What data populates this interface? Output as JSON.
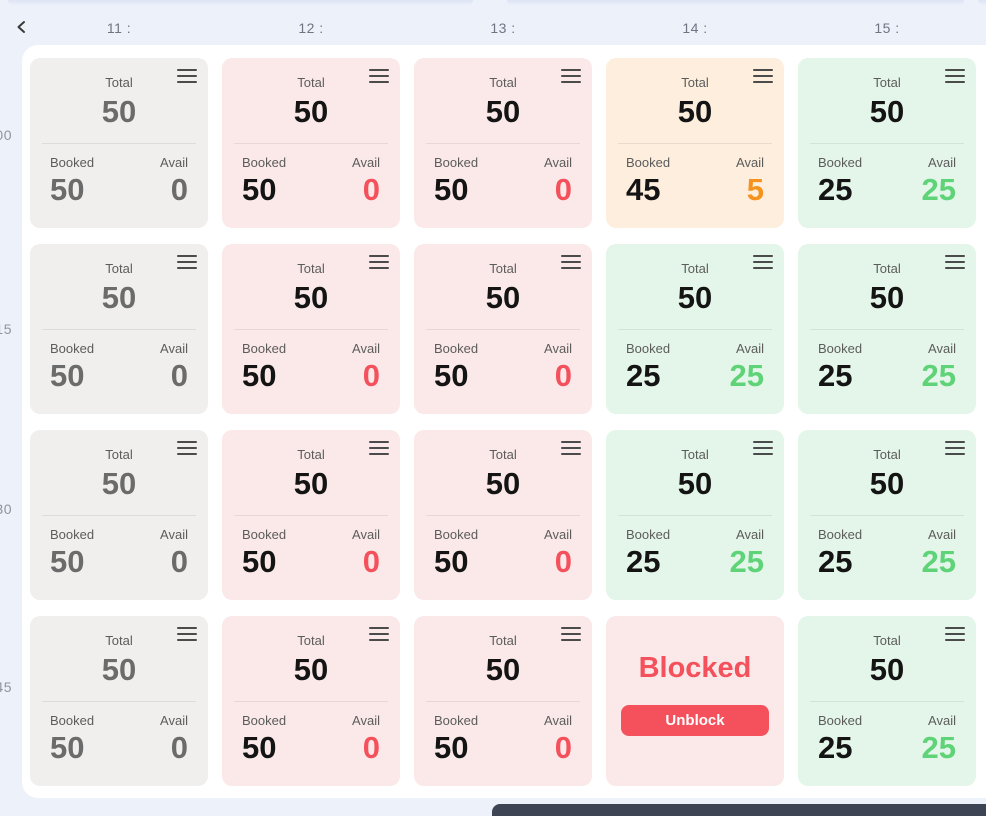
{
  "header": {
    "times": [
      "11 :",
      "12 :",
      "13 :",
      "14 :",
      "15 :"
    ]
  },
  "minutes": [
    "00",
    "15",
    "30",
    "45"
  ],
  "labels": {
    "total": "Total",
    "booked": "Booked",
    "avail": "Avail",
    "blocked": "Blocked",
    "unblock": "Unblock"
  },
  "icons": {
    "back": "chevron-left-icon",
    "card_menu": "hamburger-menu-icon"
  },
  "colors": {
    "page_bg": "#edf1fa",
    "panel_bg": "#ffffff",
    "card_gray_bg": "#f0efee",
    "card_red_bg": "#fbe9e9",
    "card_orange_bg": "#fdeede",
    "card_green_bg": "#e4f6e9",
    "accent_red": "#f4515c",
    "accent_orange": "#f6921e",
    "accent_green": "#5fd377",
    "value_black": "#141414",
    "value_gray": "#6b6b6b",
    "bottom_bar": "#3d4453"
  },
  "grid": {
    "rows": [
      {
        "minute": "00",
        "cells": [
          {
            "variant": "gray",
            "total": "50",
            "booked": "50",
            "avail": "0"
          },
          {
            "variant": "red",
            "total": "50",
            "booked": "50",
            "avail": "0"
          },
          {
            "variant": "red",
            "total": "50",
            "booked": "50",
            "avail": "0"
          },
          {
            "variant": "orange",
            "total": "50",
            "booked": "45",
            "avail": "5"
          },
          {
            "variant": "green",
            "total": "50",
            "booked": "25",
            "avail": "25"
          }
        ]
      },
      {
        "minute": "15",
        "cells": [
          {
            "variant": "gray",
            "total": "50",
            "booked": "50",
            "avail": "0"
          },
          {
            "variant": "red",
            "total": "50",
            "booked": "50",
            "avail": "0"
          },
          {
            "variant": "red",
            "total": "50",
            "booked": "50",
            "avail": "0"
          },
          {
            "variant": "green",
            "total": "50",
            "booked": "25",
            "avail": "25"
          },
          {
            "variant": "green",
            "total": "50",
            "booked": "25",
            "avail": "25"
          }
        ]
      },
      {
        "minute": "30",
        "cells": [
          {
            "variant": "gray",
            "total": "50",
            "booked": "50",
            "avail": "0"
          },
          {
            "variant": "red",
            "total": "50",
            "booked": "50",
            "avail": "0"
          },
          {
            "variant": "red",
            "total": "50",
            "booked": "50",
            "avail": "0"
          },
          {
            "variant": "green",
            "total": "50",
            "booked": "25",
            "avail": "25"
          },
          {
            "variant": "green",
            "total": "50",
            "booked": "25",
            "avail": "25"
          }
        ]
      },
      {
        "minute": "45",
        "cells": [
          {
            "variant": "gray",
            "total": "50",
            "booked": "50",
            "avail": "0"
          },
          {
            "variant": "red",
            "total": "50",
            "booked": "50",
            "avail": "0"
          },
          {
            "variant": "red",
            "total": "50",
            "booked": "50",
            "avail": "0"
          },
          {
            "variant": "blocked"
          },
          {
            "variant": "green",
            "total": "50",
            "booked": "25",
            "avail": "25"
          }
        ]
      }
    ]
  }
}
